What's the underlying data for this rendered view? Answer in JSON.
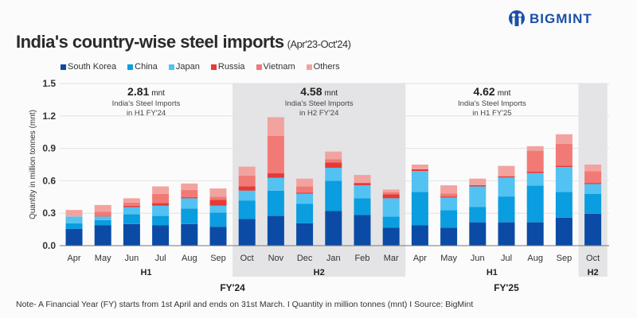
{
  "logo": {
    "text": "BIGMINT"
  },
  "title": {
    "main": "India's country-wise steel imports",
    "sub": "(Apr'23-Oct'24)"
  },
  "note": "Note- A Financial Year (FY) starts from 1st April and ends on 31st March.  I  Quantity in million tonnes (mnt)  I  Source: BigMint",
  "chart_data": {
    "type": "bar",
    "stacked": true,
    "ylabel": "Quantity in million tonnes (mnt)",
    "ylim": [
      0,
      1.5
    ],
    "yticks": [
      "0.0",
      "0.3",
      "0.6",
      "0.9",
      "1.2",
      "1.5"
    ],
    "grid": true,
    "legend_position": "top-left",
    "categories": [
      "Apr",
      "May",
      "Jun",
      "Jul",
      "Aug",
      "Sep",
      "Oct",
      "Nov",
      "Dec",
      "Jan",
      "Feb",
      "Mar",
      "Apr",
      "May",
      "Jun",
      "Jul",
      "Aug",
      "Sep",
      "Oct"
    ],
    "series": [
      {
        "name": "South Korea",
        "color": "#0b4ba5",
        "values": [
          0.155,
          0.19,
          0.2,
          0.19,
          0.2,
          0.175,
          0.248,
          0.275,
          0.207,
          0.32,
          0.285,
          0.167,
          0.19,
          0.165,
          0.216,
          0.216,
          0.216,
          0.258,
          0.295
        ]
      },
      {
        "name": "China",
        "color": "#0a9ddf",
        "values": [
          0.052,
          0.046,
          0.09,
          0.085,
          0.144,
          0.132,
          0.17,
          0.234,
          0.179,
          0.28,
          0.153,
          0.101,
          0.307,
          0.162,
          0.143,
          0.239,
          0.34,
          0.239,
          0.185
        ]
      },
      {
        "name": "Japan",
        "color": "#52c2f2",
        "values": [
          0.063,
          0.034,
          0.066,
          0.094,
          0.094,
          0.062,
          0.091,
          0.118,
          0.094,
          0.12,
          0.12,
          0.17,
          0.193,
          0.118,
          0.189,
          0.175,
          0.115,
          0.231,
          0.09
        ]
      },
      {
        "name": "Russia",
        "color": "#e63a37",
        "values": [
          0.0,
          0.005,
          0.013,
          0.024,
          0.01,
          0.054,
          0.039,
          0.042,
          0.009,
          0.05,
          0.022,
          0.037,
          0.016,
          0.01,
          0.012,
          0.012,
          0.015,
          0.012,
          0.01
        ]
      },
      {
        "name": "Vietnam",
        "color": "#f27a76",
        "values": [
          0.0,
          0.04,
          0.03,
          0.087,
          0.068,
          0.03,
          0.101,
          0.346,
          0.06,
          0.03,
          0.0,
          0.02,
          0.0,
          0.029,
          0.0,
          0.0,
          0.192,
          0.202,
          0.108
        ]
      },
      {
        "name": "Others",
        "color": "#f2a3a0",
        "values": [
          0.06,
          0.061,
          0.039,
          0.068,
          0.059,
          0.076,
          0.082,
          0.173,
          0.071,
          0.07,
          0.074,
          0.024,
          0.044,
          0.074,
          0.06,
          0.096,
          0.042,
          0.088,
          0.062
        ]
      }
    ],
    "periods": [
      {
        "label": "H1",
        "start": 0,
        "end": 5,
        "shaded": false
      },
      {
        "label": "H2",
        "start": 6,
        "end": 11,
        "shaded": true
      },
      {
        "label": "H1",
        "start": 12,
        "end": 17,
        "shaded": false
      },
      {
        "label": "H2",
        "start": 18,
        "end": 18,
        "shaded": true
      }
    ],
    "fiscal_years": [
      {
        "label": "FY'24",
        "start": 0,
        "end": 11
      },
      {
        "label": "FY'25",
        "start": 12,
        "end": 18
      }
    ],
    "annotations": [
      {
        "value": "2.81",
        "unit": "mnt",
        "line1": "India's Steel Imports",
        "line2": "in H1 FY'24",
        "period": 0
      },
      {
        "value": "4.58",
        "unit": "mnt",
        "line1": "India's Steel Imports",
        "line2": "in H2 FY'24",
        "period": 1
      },
      {
        "value": "4.62",
        "unit": "mnt",
        "line1": "India's Steel Imports",
        "line2": "in H1 FY'25",
        "period": 2
      }
    ]
  }
}
